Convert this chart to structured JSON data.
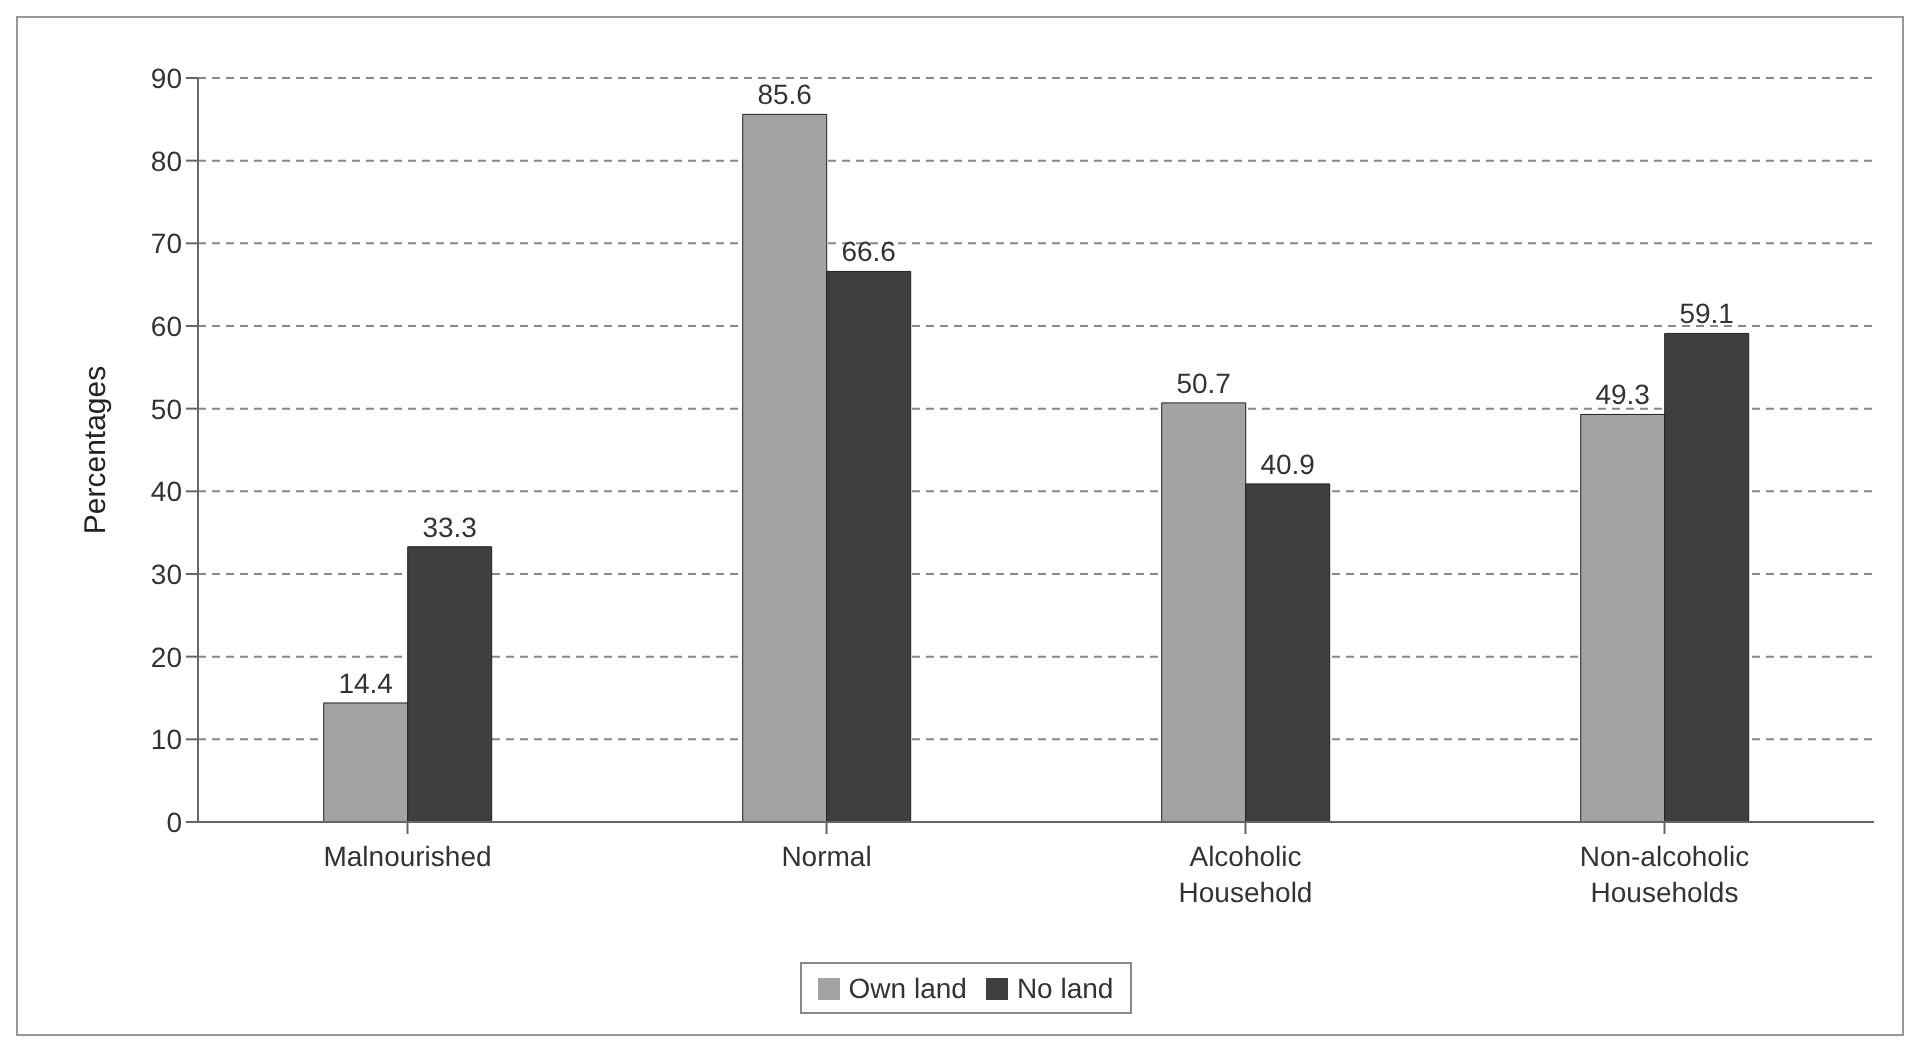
{
  "chart_data": {
    "type": "bar",
    "ylabel": "Percentages",
    "categories": [
      "Malnourished",
      "Normal",
      "Alcoholic Household",
      "Non-alcoholic Households"
    ],
    "series": [
      {
        "name": "Own land",
        "color": "#a3a3a3",
        "values": [
          14.4,
          85.6,
          50.7,
          49.3
        ]
      },
      {
        "name": "No land",
        "color": "#3f3f3f",
        "values": [
          33.3,
          66.6,
          40.9,
          59.1
        ]
      }
    ],
    "ylim": [
      0,
      90
    ],
    "yticks": [
      0,
      10,
      20,
      30,
      40,
      50,
      60,
      70,
      80,
      90
    ],
    "grid": "y",
    "line_style": "dashed",
    "legend": "bottom",
    "data_labels": true
  }
}
